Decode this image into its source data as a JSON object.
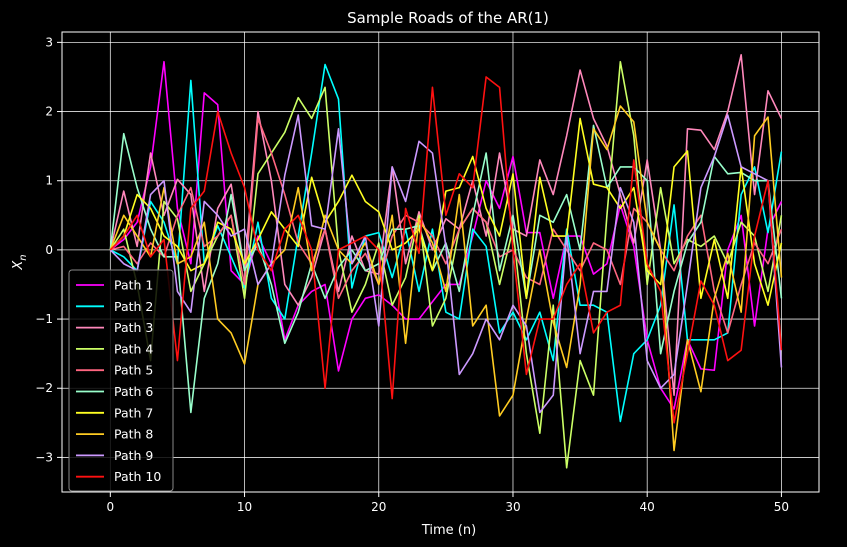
{
  "chart_data": {
    "type": "line",
    "title": "Sample Roads of the AR(1)",
    "xlabel": "Time (n)",
    "ylabel": "X_n",
    "xlim": [
      -3.6,
      52.8
    ],
    "ylim": [
      -3.5,
      3.15
    ],
    "xticks": [
      0,
      10,
      20,
      30,
      40,
      50
    ],
    "yticks": [
      -3,
      -2,
      -1,
      0,
      1,
      2,
      3
    ],
    "xtick_labels": [
      "0",
      "10",
      "20",
      "30",
      "40",
      "50"
    ],
    "ytick_labels": [
      "−3",
      "−2",
      "−1",
      "0",
      "1",
      "2",
      "3"
    ],
    "grid": true,
    "legend_position": "lower-left",
    "background": "#000000",
    "series": [
      {
        "name": "Path 1",
        "color": "#ff00ff",
        "values": [
          0,
          0.15,
          0.4,
          1.2,
          2.72,
          0.6,
          -0.2,
          2.27,
          2.1,
          -0.3,
          -0.5,
          0.2,
          -0.2,
          -1.3,
          -0.8,
          -0.6,
          -0.5,
          -1.75,
          -1.0,
          -0.7,
          -0.65,
          -0.8,
          -1.0,
          -1.0,
          -0.75,
          -0.5,
          -0.5,
          0.2,
          1.0,
          0.6,
          1.35,
          0.25,
          0.25,
          -0.7,
          0.2,
          0.2,
          -0.35,
          -0.2,
          0.65,
          0.05,
          -1.3,
          -2.0,
          -2.3,
          -1.3,
          -1.72,
          -1.74,
          0.0,
          0.5,
          -1.1,
          0.3,
          0.7
        ]
      },
      {
        "name": "Path 2",
        "color": "#00ffff",
        "values": [
          0,
          -0.1,
          -0.3,
          0.7,
          0.4,
          -0.2,
          2.45,
          -0.2,
          0.35,
          -0.1,
          -0.55,
          0.4,
          -0.7,
          -1.0,
          0.2,
          1.4,
          2.68,
          2.18,
          -0.55,
          0.2,
          0.25,
          -0.4,
          0.3,
          -0.6,
          0.3,
          -0.9,
          -1.0,
          0.3,
          0.05,
          -1.2,
          -0.9,
          -1.3,
          -0.9,
          -1.6,
          0.3,
          -0.8,
          -0.8,
          -0.9,
          -2.48,
          -1.5,
          -1.3,
          -0.8,
          0.65,
          -1.3,
          -1.3,
          -1.3,
          -1.2,
          0.8,
          1.2,
          0.25,
          1.42
        ]
      },
      {
        "name": "Path 3",
        "color": "#ff88bb",
        "values": [
          0,
          0.85,
          0.05,
          1.4,
          0.5,
          1.02,
          0.8,
          -0.6,
          0.6,
          0.95,
          -0.3,
          2.0,
          1.0,
          -0.5,
          -0.8,
          -0.4,
          0.3,
          -0.6,
          0.2,
          -0.3,
          -0.35,
          1.2,
          -0.2,
          0.55,
          0.0,
          0.45,
          0.3,
          1.0,
          0.2,
          1.4,
          0.3,
          0.2,
          1.3,
          0.8,
          1.65,
          2.6,
          1.9,
          1.5,
          0.8,
          0.1,
          1.3,
          0.0,
          -2.1,
          1.75,
          1.73,
          1.45,
          2.0,
          2.82,
          0.8,
          2.3,
          1.9
        ]
      },
      {
        "name": "Path 4",
        "color": "#ccff66",
        "values": [
          0,
          0.3,
          -0.5,
          -1.6,
          0.7,
          0.45,
          -0.6,
          -0.2,
          0.2,
          0.5,
          -0.7,
          1.1,
          1.4,
          1.7,
          2.2,
          1.9,
          2.35,
          0.0,
          -0.9,
          -0.5,
          0.1,
          -0.8,
          -0.4,
          0.5,
          -1.1,
          -0.7,
          0.3,
          0.6,
          0.4,
          -0.5,
          0.3,
          -1.5,
          -2.65,
          -0.8,
          -3.15,
          -1.6,
          -2.1,
          0.5,
          2.72,
          1.65,
          -0.5,
          0.9,
          -0.2,
          0.15,
          0.05,
          0.2,
          -0.2,
          0.4,
          0.2,
          -0.6,
          0.5
        ]
      },
      {
        "name": "Path 5",
        "color": "#ff6680",
        "values": [
          0,
          0.05,
          -0.2,
          0.1,
          -0.1,
          0.5,
          0.9,
          0.05,
          0.2,
          0.5,
          -0.5,
          1.9,
          1.4,
          0.8,
          0.1,
          -0.2,
          0.3,
          -0.7,
          -0.3,
          -0.05,
          -0.5,
          0.2,
          0.5,
          0.4,
          0.2,
          -0.2,
          0.3,
          0.6,
          0.4,
          -0.1,
          0.0,
          -0.4,
          -0.5,
          0.3,
          0.0,
          -0.3,
          0.1,
          0.0,
          -0.5,
          0.6,
          0.4,
          0.0,
          -0.3,
          0.2,
          0.5,
          -0.6,
          -1.2,
          -0.5,
          0.1,
          -0.2,
          0.3
        ]
      },
      {
        "name": "Path 6",
        "color": "#99ffcc",
        "values": [
          0,
          1.68,
          0.9,
          0.3,
          -0.1,
          -0.1,
          -2.35,
          -0.7,
          -0.2,
          0.8,
          -0.3,
          0.1,
          -0.5,
          -1.35,
          -0.9,
          -0.2,
          -0.7,
          -0.25,
          0.0,
          -0.3,
          -0.2,
          0.3,
          0.3,
          0.35,
          -0.3,
          0.1,
          -0.6,
          0.5,
          1.4,
          -0.3,
          0.5,
          -0.7,
          0.5,
          0.4,
          0.8,
          0.0,
          1.8,
          0.9,
          1.2,
          1.2,
          1.0,
          -1.5,
          -0.6,
          0.1,
          0.4,
          1.35,
          1.1,
          1.12,
          1.0,
          1.0,
          -0.7
        ]
      },
      {
        "name": "Path 7",
        "color": "#ffff22",
        "values": [
          0,
          0.2,
          0.8,
          0.6,
          0.2,
          0.05,
          -0.3,
          -0.2,
          0.4,
          0.3,
          -0.2,
          0.15,
          0.55,
          0.3,
          0.05,
          1.05,
          0.4,
          0.7,
          1.08,
          0.7,
          0.55,
          0.0,
          0.1,
          0.3,
          -0.3,
          0.85,
          0.9,
          1.35,
          0.6,
          0.2,
          1.1,
          -0.7,
          1.05,
          0.2,
          0.2,
          1.9,
          0.95,
          0.9,
          0.6,
          0.9,
          -0.3,
          -0.5,
          1.2,
          1.43,
          -0.7,
          0.15,
          -0.7,
          1.2,
          -0.2,
          -0.8,
          0.1
        ]
      },
      {
        "name": "Path 8",
        "color": "#ffcc22",
        "values": [
          0,
          0.5,
          0.2,
          -0.1,
          0.9,
          -0.2,
          -0.1,
          0.4,
          -1.0,
          -1.2,
          -1.65,
          -0.5,
          -0.2,
          0.0,
          0.9,
          -0.3,
          0.5,
          0.0,
          -0.2,
          0.1,
          -0.5,
          0.5,
          -1.35,
          0.45,
          0.1,
          -0.6,
          0.8,
          -1.1,
          -0.8,
          -2.4,
          -2.1,
          -1.0,
          0.0,
          -1.05,
          -1.7,
          -0.5,
          1.75,
          1.45,
          2.08,
          1.85,
          0.4,
          0.0,
          -2.9,
          -1.3,
          -2.05,
          -0.7,
          -0.05,
          -0.9,
          1.65,
          1.92,
          -0.4
        ]
      },
      {
        "name": "Path 9",
        "color": "#cc99ff",
        "values": [
          0,
          -0.2,
          -0.3,
          0.8,
          1.0,
          -0.6,
          -0.9,
          0.7,
          0.5,
          0.2,
          0.3,
          -0.5,
          -0.2,
          1.08,
          1.95,
          0.35,
          0.3,
          1.75,
          -0.2,
          0.2,
          -1.1,
          1.2,
          0.7,
          1.57,
          1.4,
          0.05,
          -1.8,
          -1.5,
          -1.0,
          -1.3,
          -0.8,
          -1.1,
          -2.35,
          -2.1,
          0.2,
          -1.5,
          -0.6,
          -0.6,
          0.9,
          0.4,
          -1.6,
          -2.0,
          -1.8,
          -0.5,
          0.9,
          1.35,
          1.95,
          1.2,
          1.1,
          1.0,
          -1.7
        ]
      },
      {
        "name": "Path 10",
        "color": "#ff1111",
        "values": [
          0,
          0.2,
          0.5,
          -0.1,
          0.15,
          -1.6,
          0.6,
          0.85,
          2.0,
          1.4,
          0.9,
          0.0,
          -0.3,
          0.3,
          0.5,
          0.0,
          -2.0,
          0.0,
          0.1,
          0.2,
          0.0,
          -2.15,
          0.6,
          -0.05,
          2.35,
          0.5,
          1.1,
          0.9,
          2.5,
          2.35,
          0.0,
          -1.8,
          -1.0,
          -1.0,
          -0.5,
          -0.2,
          -1.2,
          -0.9,
          -0.8,
          1.3,
          -0.2,
          -0.6,
          -2.5,
          -1.5,
          -0.45,
          -0.8,
          -1.6,
          -1.45,
          0.2,
          1.0,
          -1.45
        ]
      }
    ]
  }
}
